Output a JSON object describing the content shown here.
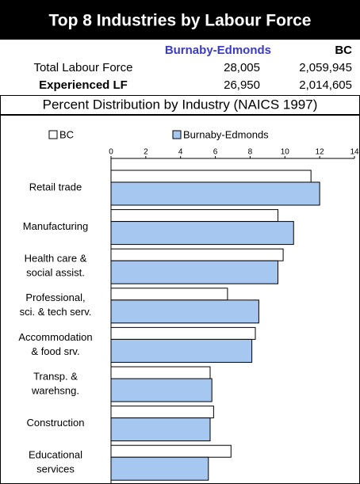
{
  "title": "Top 8 Industries by Labour Force",
  "table": {
    "headers": [
      "Burnaby-Edmonds",
      "BC"
    ],
    "rows": [
      [
        "Total Labour Force",
        "28,005",
        "2,059,945"
      ],
      [
        "Experienced LF",
        "26,950",
        "2,014,605"
      ]
    ]
  },
  "subtitle": "Percent Distribution by Industry (NAICS 1997)",
  "chart_data": {
    "type": "hbar",
    "categories": [
      [
        "Retail trade"
      ],
      [
        "Manufacturing"
      ],
      [
        "Health care &",
        "social assist."
      ],
      [
        "Professional,",
        "sci. & tech serv."
      ],
      [
        "Accommodation",
        "& food srv."
      ],
      [
        "Transp. &",
        "warehsng."
      ],
      [
        "Construction"
      ],
      [
        "Educational",
        "services"
      ]
    ],
    "series": [
      {
        "name": "BC",
        "color": "#ffffff",
        "values": [
          11.5,
          9.6,
          9.9,
          6.7,
          8.3,
          5.7,
          5.9,
          6.9
        ]
      },
      {
        "name": "Burnaby-Edmonds",
        "color": "#a6c8f0",
        "values": [
          12.0,
          10.5,
          9.6,
          8.5,
          8.1,
          5.8,
          5.7,
          5.6
        ]
      }
    ],
    "xlim": [
      0,
      14
    ],
    "xticks": [
      0,
      2,
      4,
      6,
      8,
      10,
      12,
      14
    ],
    "legend": "top"
  }
}
